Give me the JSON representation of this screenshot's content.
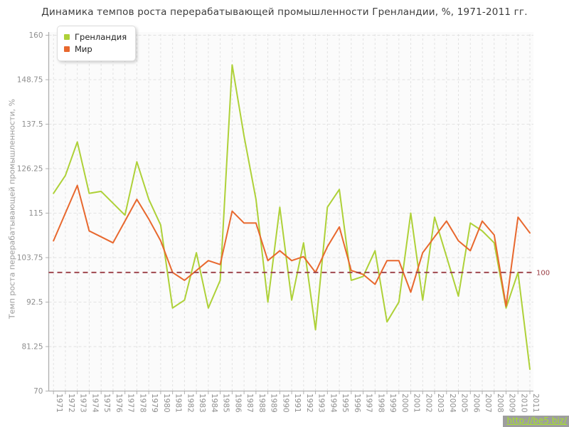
{
  "title": "Динамика темпов роста перерабатывающей промышленности Гренландии, %, 1971-2011 гг.",
  "watermark": "http://be5.biz/",
  "legend": {
    "items": [
      {
        "label": "Гренландия",
        "color": "#aed138"
      },
      {
        "label": "Мир",
        "color": "#e8682e"
      }
    ]
  },
  "chart_data": {
    "type": "line",
    "title": "Динамика темпов роста перерабатывающей промышленности Гренландии, %, 1971-2011 гг.",
    "xlabel": "",
    "ylabel": "Темп роста перерабатывающей промышленности, %",
    "ylim": [
      70,
      160
    ],
    "yticks": [
      70,
      81.25,
      92.5,
      103.75,
      115,
      126.25,
      137.5,
      148.75,
      160
    ],
    "grid": "dashed",
    "legend_position": "top-left",
    "x": [
      1971,
      1972,
      1973,
      1974,
      1975,
      1976,
      1977,
      1978,
      1979,
      1980,
      1981,
      1982,
      1983,
      1984,
      1985,
      1986,
      1987,
      1988,
      1989,
      1990,
      1991,
      1992,
      1993,
      1994,
      1995,
      1996,
      1997,
      1998,
      1999,
      2000,
      2001,
      2002,
      2003,
      2004,
      2005,
      2006,
      2007,
      2008,
      2009,
      2010,
      2011
    ],
    "series": [
      {
        "name": "Гренландия",
        "color": "#aed138",
        "values": [
          120,
          124.5,
          133,
          120,
          120.5,
          117.5,
          114.5,
          128,
          118.5,
          112,
          91,
          93,
          105,
          91,
          98,
          152.5,
          134.5,
          118.5,
          92.5,
          116.5,
          93,
          107.5,
          85.5,
          116.5,
          121,
          98,
          99,
          105.5,
          87.5,
          92.5,
          115,
          93,
          114,
          104,
          94,
          112.5,
          110.5,
          107.5,
          91,
          100,
          75.5
        ]
      },
      {
        "name": "Мир",
        "color": "#e8682e",
        "values": [
          108,
          115,
          122,
          110.5,
          109,
          107.5,
          113,
          118.5,
          113.5,
          108,
          100,
          98,
          100.5,
          103,
          102,
          115.5,
          112.5,
          112.5,
          103,
          105.5,
          103,
          104,
          100,
          106.5,
          111.5,
          100.5,
          99.5,
          97,
          103,
          103,
          95,
          105,
          109,
          113,
          108,
          105.5,
          113,
          109.5,
          91.5,
          114,
          110
        ]
      }
    ],
    "reference_line": {
      "value": 100,
      "label": "100",
      "color": "#9a3d44"
    }
  },
  "colors": {
    "grid": "#e2e2e2",
    "axis": "#b0b0b0",
    "tick_text": "#8f8f8f",
    "plot_bg": "#fbfbfb"
  }
}
